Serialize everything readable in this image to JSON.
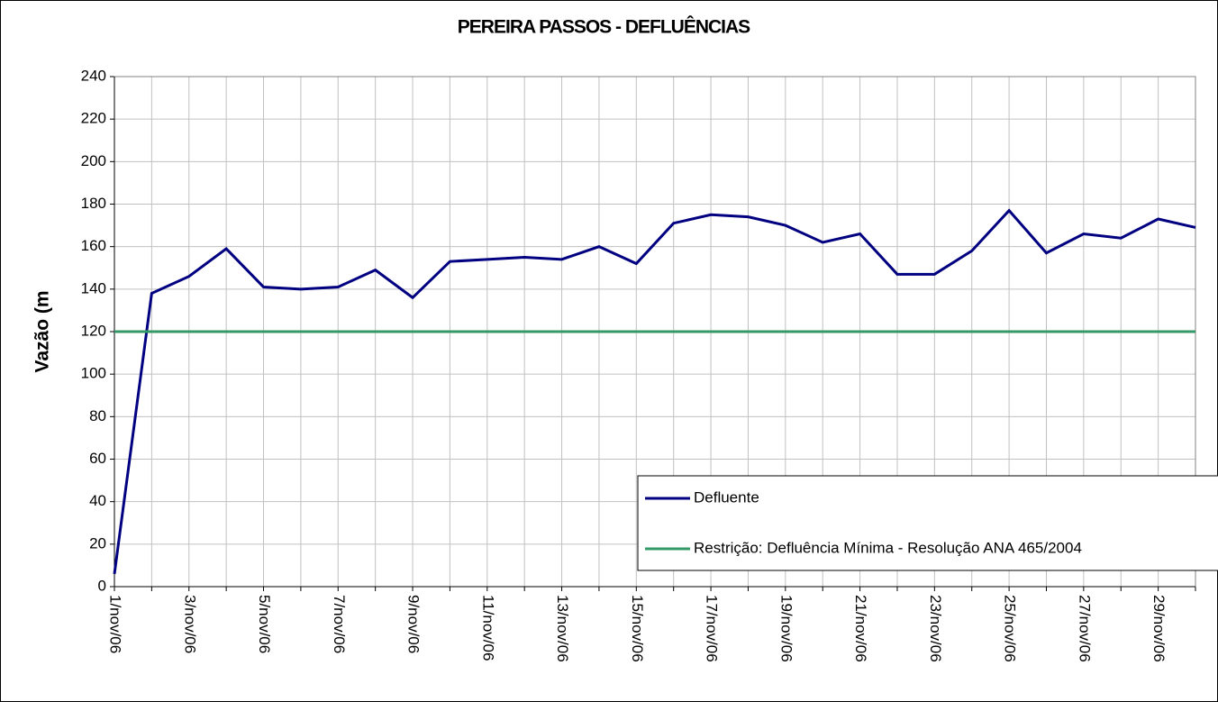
{
  "chart_data": {
    "type": "line",
    "title": "PEREIRA PASSOS - DEFLUÊNCIAS",
    "y_label": "Vazão (m",
    "categories": [
      "1/nov/06",
      null,
      "3/nov/06",
      null,
      "5/nov/06",
      null,
      "7/nov/06",
      null,
      "9/nov/06",
      null,
      "11/nov/06",
      null,
      "13/nov/06",
      null,
      "15/nov/06",
      null,
      "17/nov/06",
      null,
      "19/nov/06",
      null,
      "21/nov/06",
      null,
      "23/nov/06",
      null,
      "25/nov/06",
      null,
      "27/nov/06",
      null,
      "29/nov/06",
      null
    ],
    "series": [
      {
        "name": "Defluente",
        "color": "#000080",
        "values": [
          6,
          138,
          146,
          159,
          141,
          140,
          141,
          149,
          136,
          153,
          154,
          155,
          154,
          160,
          152,
          171,
          175,
          174,
          170,
          162,
          166,
          147,
          147,
          158,
          177,
          157,
          166,
          164,
          173,
          169
        ]
      },
      {
        "name": "Restrição: Defluência Mínima - Resolução ANA 465/2004",
        "color": "#339966",
        "values": [
          120,
          120,
          120,
          120,
          120,
          120,
          120,
          120,
          120,
          120,
          120,
          120,
          120,
          120,
          120,
          120,
          120,
          120,
          120,
          120,
          120,
          120,
          120,
          120,
          120,
          120,
          120,
          120,
          120,
          120
        ]
      }
    ],
    "ylim": [
      0,
      240
    ],
    "yticks": [
      0,
      20,
      40,
      60,
      80,
      100,
      120,
      140,
      160,
      180,
      200,
      220,
      240
    ],
    "grid": true,
    "legend": "bottom-right"
  }
}
